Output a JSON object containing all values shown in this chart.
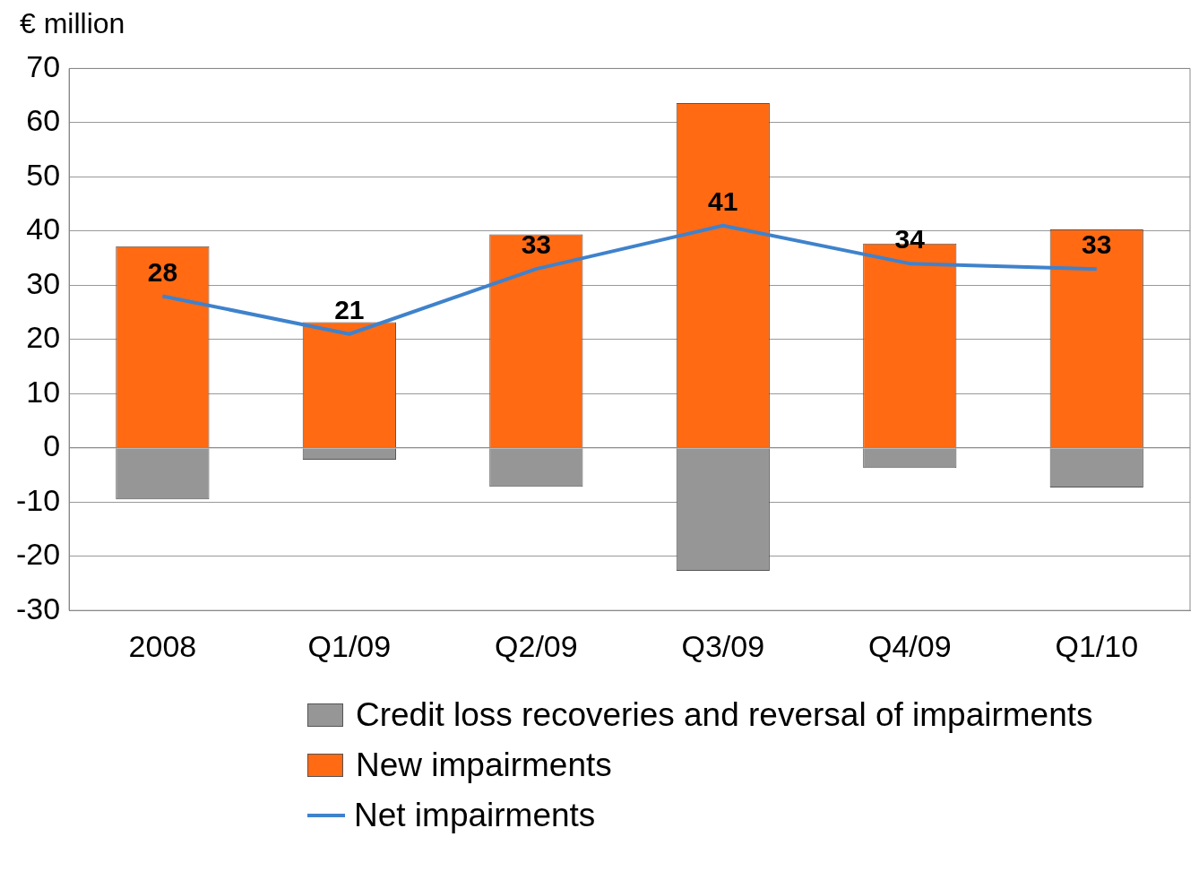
{
  "chart_data": {
    "type": "bar",
    "ylabel": "€ million",
    "categories": [
      "2008",
      "Q1/09",
      "Q2/09",
      "Q3/09",
      "Q4/09",
      "Q1/10"
    ],
    "stacked": true,
    "ylim": [
      -30,
      70
    ],
    "yticks": [
      -30,
      -20,
      -10,
      0,
      10,
      20,
      30,
      40,
      50,
      60,
      70
    ],
    "grid": "y",
    "legend": "bottom",
    "series": [
      {
        "name": "Credit loss recoveries and reversal of impairments",
        "color": "#969696",
        "values": [
          -9.5,
          -2.2,
          -7.2,
          -22.7,
          -3.7,
          -7.3
        ]
      },
      {
        "name": "New impairments",
        "color": "#ff6a13",
        "values": [
          37.2,
          23.2,
          39.4,
          63.6,
          37.7,
          40.3
        ]
      },
      {
        "name": "Net impairments",
        "type": "line",
        "color": "#3f82cc",
        "values": [
          28,
          21,
          33,
          41,
          34,
          33
        ],
        "value_labels": [
          "28",
          "21",
          "33",
          "41",
          "34",
          "33"
        ]
      }
    ]
  }
}
